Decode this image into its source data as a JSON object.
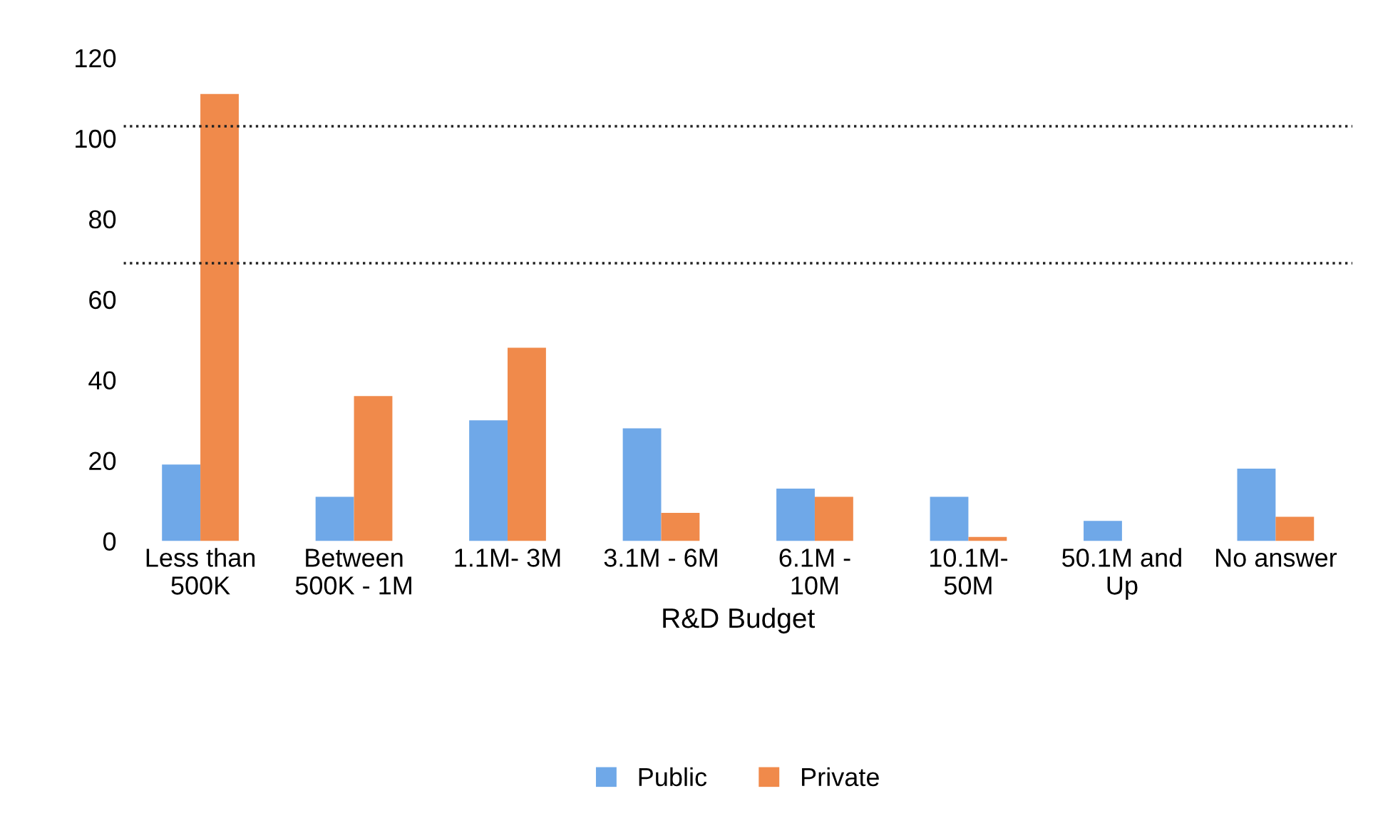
{
  "chart_data": {
    "type": "bar",
    "xlabel": "R&D Budget",
    "categories": [
      "Less than\n500K",
      "Between\n500K - 1M",
      "1.1M- 3M",
      "3.1M - 6M",
      "6.1M -\n10M",
      "10.1M-\n50M",
      "50.1M and\nUp",
      "No answer"
    ],
    "series": [
      {
        "name": "Public",
        "color": "#6fa8e8",
        "values": [
          19,
          11,
          30,
          28,
          13,
          11,
          5,
          18
        ]
      },
      {
        "name": "Private",
        "color": "#f08a4b",
        "values": [
          111,
          36,
          48,
          7,
          11,
          1,
          0,
          6
        ]
      }
    ],
    "ylim": [
      0,
      120
    ],
    "yticks": [
      0,
      20,
      40,
      60,
      80,
      100,
      120
    ],
    "grid": false,
    "legend": "bottom",
    "ref_lines": [
      {
        "axis": "y",
        "value": 103,
        "line_style": "dotted",
        "color": "#222222"
      },
      {
        "axis": "y",
        "value": 69,
        "line_style": "dotted",
        "color": "#222222"
      }
    ]
  }
}
